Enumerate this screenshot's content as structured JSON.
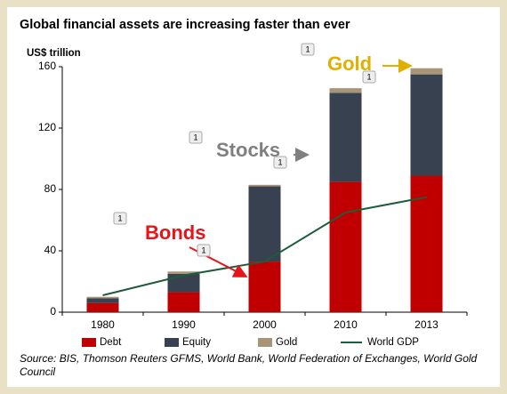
{
  "chart_data": {
    "type": "bar",
    "stacked": true,
    "title": "Global financial assets are increasing faster than ever",
    "y_label": "US$ trillion",
    "categories": [
      "1980",
      "1990",
      "2000",
      "2010",
      "2013"
    ],
    "series": [
      {
        "name": "Debt",
        "color": "#c00000",
        "values": [
          6,
          13,
          33,
          85,
          89
        ]
      },
      {
        "name": "Equity",
        "color": "#37414f",
        "values": [
          3,
          12,
          49,
          58,
          66
        ]
      },
      {
        "name": "Gold",
        "color": "#a89477",
        "values": [
          1,
          1.5,
          1,
          3,
          4
        ]
      },
      {
        "name": "World GDP",
        "type": "line",
        "color": "#1e5c3a",
        "values": [
          11,
          24,
          33,
          65,
          75
        ]
      }
    ],
    "ylim": [
      0,
      160
    ],
    "yticks": [
      0,
      40,
      80,
      120,
      160
    ],
    "annotations": [
      {
        "text": "Bonds",
        "color": "#e8141a"
      },
      {
        "text": "Stocks",
        "color": "#808080"
      },
      {
        "text": "Gold",
        "color": "#e0b000"
      }
    ],
    "badges": [
      "1",
      "1",
      "1",
      "1",
      "1",
      "1"
    ],
    "source": "Source: BIS, Thomson Reuters GFMS, World Bank, World Federation of Exchanges, World Gold Council"
  }
}
